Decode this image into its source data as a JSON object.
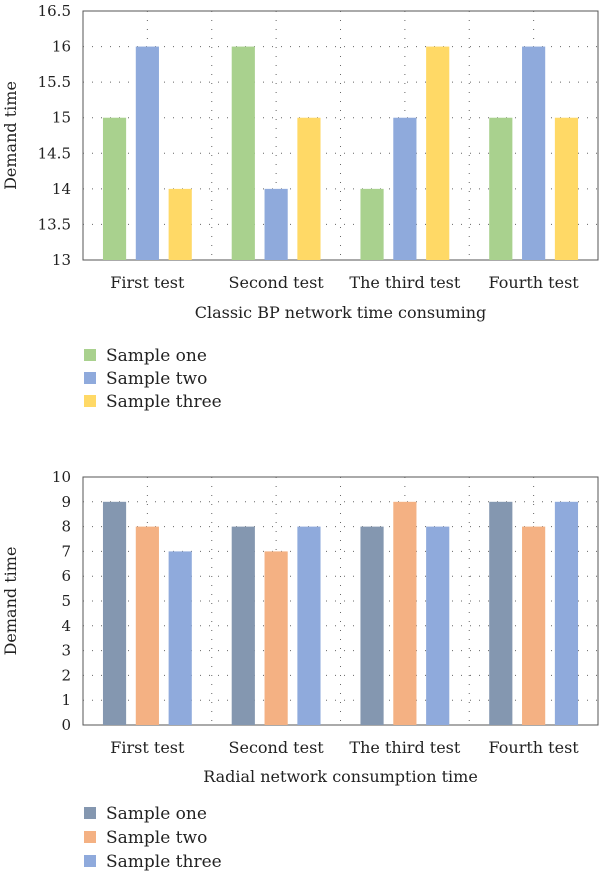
{
  "chart_data": [
    {
      "type": "bar",
      "ylabel": "Demand time",
      "xlabel": "Classic BP network time consuming",
      "categories": [
        "First test",
        "Second test",
        "The third test",
        "Fourth test"
      ],
      "ylim": [
        13,
        16.5
      ],
      "yticks": [
        13,
        13.5,
        14,
        14.5,
        15,
        15.5,
        16,
        16.5
      ],
      "ytick_labels": [
        "13",
        "13.5",
        "14",
        "14.5",
        "15",
        "15.5",
        "16",
        "16.5"
      ],
      "grid": true,
      "legend_position": "below-left",
      "series": [
        {
          "name": "Sample one",
          "color": "#a9d18e",
          "values": [
            15,
            16,
            14,
            15
          ]
        },
        {
          "name": "Sample two",
          "color": "#8faadc",
          "values": [
            16,
            14,
            15,
            16
          ]
        },
        {
          "name": "Sample three",
          "color": "#ffd966",
          "values": [
            14,
            15,
            16,
            15
          ]
        }
      ]
    },
    {
      "type": "bar",
      "ylabel": "Demand time",
      "xlabel": "Radial network consumption time",
      "categories": [
        "First test",
        "Second test",
        "The third test",
        "Fourth test"
      ],
      "ylim": [
        0,
        10
      ],
      "yticks": [
        0,
        1,
        2,
        3,
        4,
        5,
        6,
        7,
        8,
        9,
        10
      ],
      "ytick_labels": [
        "0",
        "1",
        "2",
        "3",
        "4",
        "5",
        "6",
        "7",
        "8",
        "9",
        "10"
      ],
      "grid": true,
      "legend_position": "below-left",
      "series": [
        {
          "name": "Sample one",
          "color": "#8497b0",
          "values": [
            9,
            8,
            8,
            9
          ]
        },
        {
          "name": "Sample two",
          "color": "#f4b183",
          "values": [
            8,
            7,
            9,
            8
          ]
        },
        {
          "name": "Sample three",
          "color": "#8faadc",
          "values": [
            7,
            8,
            8,
            9
          ]
        }
      ]
    }
  ]
}
